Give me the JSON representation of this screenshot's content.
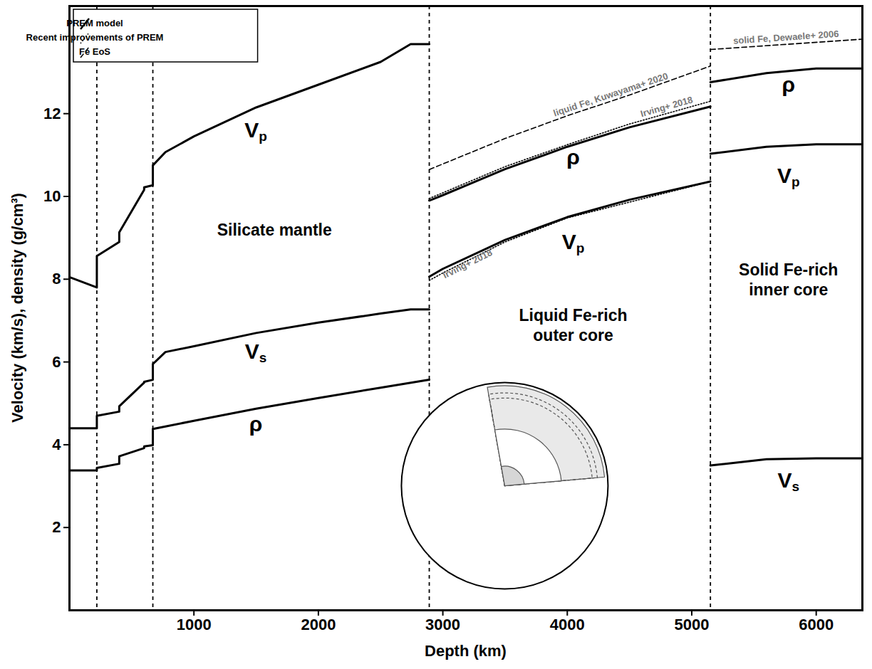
{
  "chart_data": {
    "type": "line",
    "x_label": "Depth (km)",
    "y_label": "Velocity (km/s), density (g/cm³)",
    "xlim": [
      0,
      6371
    ],
    "xticks": [
      1000,
      2000,
      3000,
      4000,
      5000,
      6000
    ],
    "ylim": [
      0,
      14.6
    ],
    "yticks": [
      2,
      4,
      6,
      8,
      10,
      12
    ],
    "grid": false,
    "legend": "top-left",
    "legend_items": [
      {
        "name": "PREM model",
        "line_style": "solid"
      },
      {
        "name": "Recent improvements of PREM",
        "line_style": "dotted"
      },
      {
        "name": "Fe EoS",
        "line_style": "dashed"
      }
    ],
    "boundaries": [
      220,
      670,
      2891,
      5150
    ],
    "regions": [
      {
        "label": "Silicate mantle"
      },
      {
        "label": "Liquid Fe-rich outer core"
      },
      {
        "label": "Solid Fe-rich inner core"
      }
    ],
    "series": [
      {
        "label": "Vp",
        "line_style": "solid",
        "color": "#000000",
        "x": [
          0,
          220,
          220,
          400,
          400,
          600,
          600,
          670,
          670,
          771,
          1000,
          1500,
          2000,
          2500,
          2741,
          2891
        ],
        "values": [
          8.05,
          7.8,
          8.56,
          8.9,
          9.13,
          10.16,
          10.22,
          10.27,
          10.75,
          11.07,
          11.45,
          12.15,
          12.7,
          13.25,
          13.68,
          13.68
        ]
      },
      {
        "label": "Vs",
        "line_style": "solid",
        "color": "#000000",
        "x": [
          0,
          220,
          220,
          400,
          400,
          600,
          600,
          670,
          670,
          771,
          1000,
          1500,
          2000,
          2500,
          2741,
          2891
        ],
        "values": [
          4.4,
          4.4,
          4.7,
          4.8,
          4.93,
          5.5,
          5.52,
          5.57,
          5.95,
          6.24,
          6.38,
          6.7,
          6.95,
          7.17,
          7.27,
          7.27
        ]
      },
      {
        "label": "ρ",
        "line_style": "solid",
        "color": "#000000",
        "x": [
          0,
          220,
          220,
          400,
          400,
          600,
          600,
          670,
          670,
          771,
          1000,
          1500,
          2000,
          2500,
          2891
        ],
        "values": [
          3.38,
          3.38,
          3.44,
          3.54,
          3.72,
          3.92,
          3.96,
          3.99,
          4.38,
          4.44,
          4.58,
          4.87,
          5.13,
          5.38,
          5.57
        ]
      },
      {
        "label": "ρ",
        "line_style": "solid",
        "color": "#000000",
        "x": [
          2891,
          3000,
          3500,
          4000,
          4500,
          5150
        ],
        "values": [
          9.9,
          10.03,
          10.66,
          11.2,
          11.67,
          12.17
        ]
      },
      {
        "label": "Vp",
        "line_style": "solid",
        "color": "#000000",
        "x": [
          2891,
          3000,
          3500,
          4000,
          4500,
          5150
        ],
        "values": [
          8.06,
          8.25,
          8.95,
          9.5,
          9.92,
          10.36
        ]
      },
      {
        "label": "ρ",
        "line_style": "solid",
        "color": "#000000",
        "x": [
          5150,
          5600,
          6000,
          6371
        ],
        "values": [
          12.76,
          12.98,
          13.09,
          13.09
        ]
      },
      {
        "label": "Vp",
        "line_style": "solid",
        "color": "#000000",
        "x": [
          5150,
          5600,
          6000,
          6371
        ],
        "values": [
          11.03,
          11.2,
          11.26,
          11.26
        ]
      },
      {
        "label": "Vs",
        "line_style": "solid",
        "color": "#000000",
        "x": [
          5150,
          5600,
          6000,
          6371
        ],
        "values": [
          3.5,
          3.65,
          3.67,
          3.67
        ]
      },
      {
        "label": "Irving+ 2018",
        "line_style": "dotted",
        "color": "#000000",
        "x": [
          2891,
          3500,
          4000,
          4500,
          5150
        ],
        "values": [
          9.95,
          10.72,
          11.25,
          11.75,
          12.3
        ]
      },
      {
        "label": "Irving+ 2018",
        "line_style": "dotted",
        "color": "#000000",
        "x": [
          2891,
          3000,
          3500,
          4000,
          5150
        ],
        "values": [
          7.97,
          8.15,
          8.9,
          9.48,
          10.36
        ]
      },
      {
        "label": "liquid Fe, Kuwayama+ 2020",
        "line_style": "dashed",
        "color": "#000000",
        "x": [
          2891,
          3500,
          4000,
          4500,
          5150
        ],
        "values": [
          10.65,
          11.4,
          11.95,
          12.45,
          13.15
        ]
      },
      {
        "label": "solid Fe, Dewaele+ 2006",
        "line_style": "dashed",
        "color": "#000000",
        "x": [
          5150,
          6371
        ],
        "values": [
          13.55,
          13.8
        ]
      }
    ]
  }
}
